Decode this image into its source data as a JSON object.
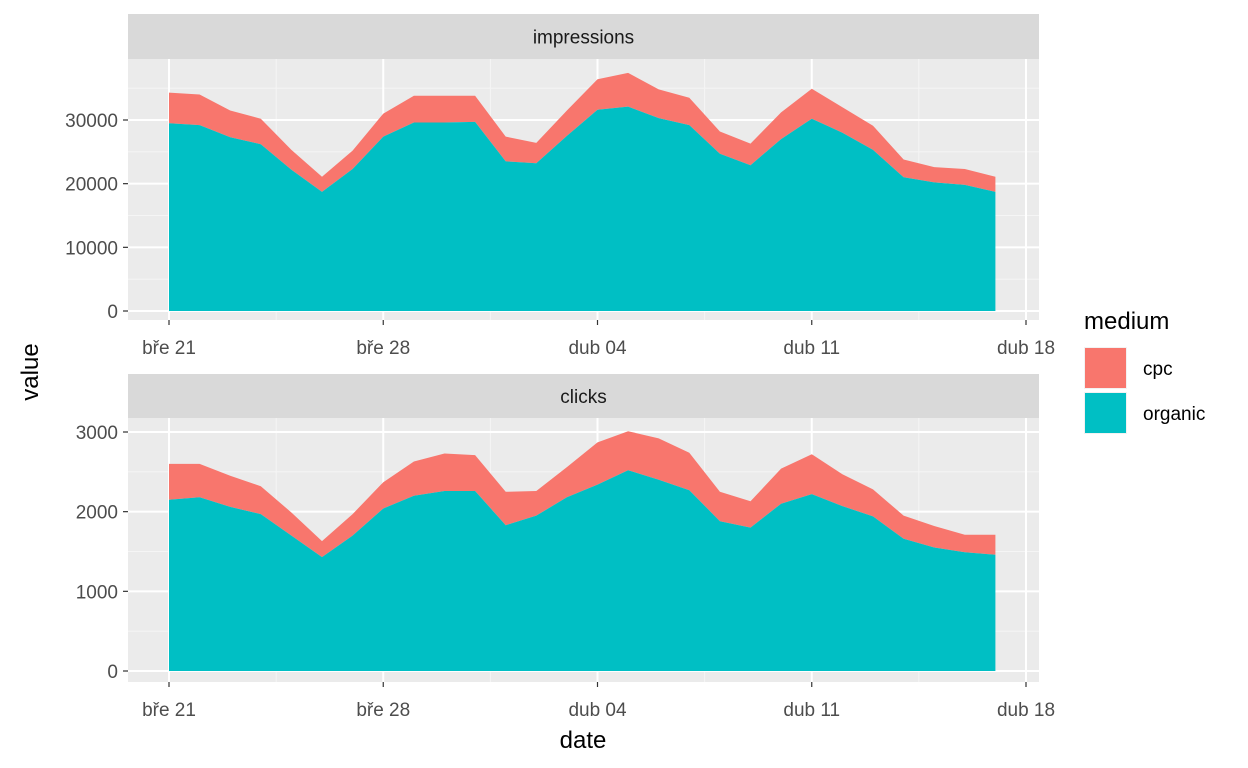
{
  "chart_data": {
    "type": "area",
    "stacked": true,
    "xlabel": "date",
    "ylabel": "value",
    "x_ticks": [
      "bře 21",
      "bře 28",
      "dub 04",
      "dub 11",
      "dub 18"
    ],
    "dates": [
      "03-21",
      "03-22",
      "03-23",
      "03-24",
      "03-25",
      "03-26",
      "03-27",
      "03-28",
      "03-29",
      "03-30",
      "03-31",
      "04-01",
      "04-02",
      "04-03",
      "04-04",
      "04-05",
      "04-06",
      "04-07",
      "04-08",
      "04-09",
      "04-10",
      "04-11",
      "04-12",
      "04-13",
      "04-14",
      "04-15",
      "04-16",
      "04-17"
    ],
    "legend": {
      "title": "medium",
      "position": "right",
      "entries": [
        {
          "name": "cpc",
          "color": "#F8766D"
        },
        {
          "name": "organic",
          "color": "#00BFC4"
        }
      ]
    },
    "panels": [
      {
        "strip": "impressions",
        "y_ticks": [
          "0",
          "10000",
          "20000",
          "30000"
        ],
        "ylim": [
          0,
          38500
        ],
        "series": [
          {
            "name": "organic",
            "values": [
              29500,
              29200,
              27300,
              26200,
              22200,
              18700,
              22300,
              27400,
              29600,
              29600,
              29700,
              23500,
              23200,
              27500,
              31600,
              32100,
              30300,
              29200,
              24700,
              22900,
              27000,
              30200,
              28000,
              25300,
              21000,
              20200,
              19800,
              18700
            ]
          },
          {
            "name": "cpc",
            "values": [
              4800,
              4800,
              4200,
              4000,
              3100,
              2400,
              2900,
              3600,
              4200,
              4200,
              4100,
              3900,
              3200,
              4000,
              4800,
              5300,
              4500,
              4300,
              3500,
              3400,
              4200,
              4700,
              4000,
              3800,
              2800,
              2400,
              2500,
              2400
            ]
          }
        ]
      },
      {
        "strip": "clicks",
        "y_ticks": [
          "0",
          "1000",
          "2000",
          "3000"
        ],
        "ylim": [
          0,
          3150
        ],
        "series": [
          {
            "name": "organic",
            "values": [
              2150,
              2180,
              2060,
              1970,
              1700,
              1430,
              1700,
              2040,
              2200,
              2260,
              2260,
              1830,
              1950,
              2180,
              2340,
              2520,
              2400,
              2270,
              1880,
              1800,
              2100,
              2220,
              2070,
              1940,
              1660,
              1550,
              1490,
              1460
            ]
          },
          {
            "name": "cpc",
            "values": [
              450,
              420,
              390,
              350,
              290,
              200,
              270,
              330,
              430,
              470,
              450,
              420,
              310,
              380,
              530,
              490,
              520,
              470,
              370,
              330,
              440,
              500,
              400,
              340,
              290,
              270,
              220,
              250
            ]
          }
        ]
      }
    ]
  }
}
